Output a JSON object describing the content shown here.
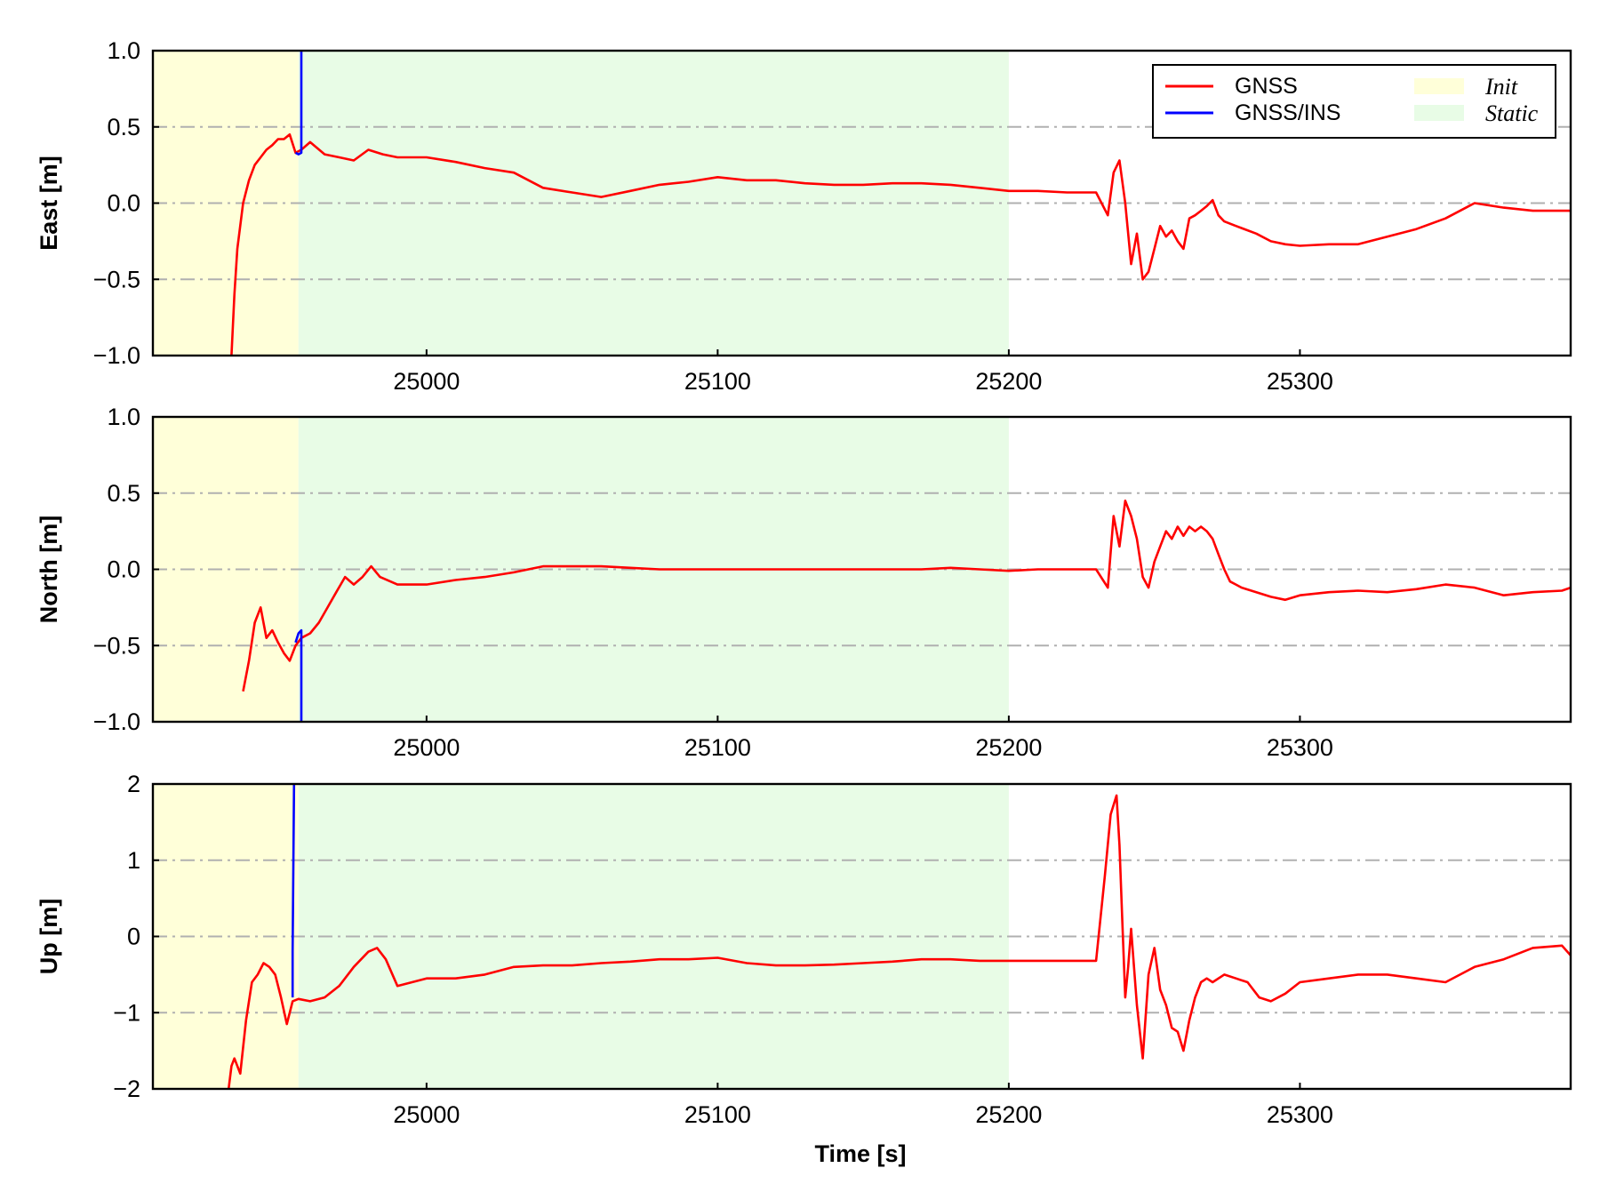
{
  "colors": {
    "gnss": "#ff0000",
    "gnss_ins": "#0000ff",
    "init_band": "#ffffd9",
    "static_band": "#e8fce6",
    "grid": "#b0b0b0"
  },
  "chart_data": [
    {
      "type": "line",
      "ylabel": "East [m]",
      "xlabel": "",
      "xlim": [
        24906,
        25393
      ],
      "ylim": [
        -1.0,
        1.0
      ],
      "xticks": [
        "25000",
        "25100",
        "25200",
        "25300"
      ],
      "yticks": [
        "1.0",
        "0.5",
        "0.0",
        "−0.5",
        "−1.0"
      ],
      "grid": "horizontal dash-dot",
      "bands": [
        {
          "name": "Init",
          "x": [
            24906,
            24956
          ]
        },
        {
          "name": "Static",
          "x": [
            24956,
            25200
          ]
        }
      ],
      "series": [
        {
          "name": "GNSS",
          "x": [
            24933,
            24934,
            24935,
            24937,
            24939,
            24941,
            24943,
            24945,
            24947,
            24949,
            24951,
            24953,
            24955,
            24957,
            24960,
            24965,
            24970,
            24975,
            24980,
            24985,
            24990,
            25000,
            25010,
            25020,
            25030,
            25040,
            25050,
            25060,
            25070,
            25080,
            25090,
            25100,
            25110,
            25120,
            25130,
            25140,
            25150,
            25160,
            25170,
            25180,
            25190,
            25200,
            25210,
            25220,
            25230,
            25234,
            25236,
            25238,
            25240,
            25242,
            25244,
            25246,
            25248,
            25250,
            25252,
            25254,
            25256,
            25258,
            25260,
            25262,
            25264,
            25266,
            25268,
            25270,
            25272,
            25274,
            25278,
            25285,
            25290,
            25295,
            25300,
            25310,
            25320,
            25330,
            25340,
            25350,
            25360,
            25370,
            25380,
            25390,
            25393
          ],
          "y": [
            -1.0,
            -0.6,
            -0.3,
            0.0,
            0.15,
            0.25,
            0.3,
            0.35,
            0.38,
            0.42,
            0.42,
            0.45,
            0.33,
            0.35,
            0.4,
            0.32,
            0.3,
            0.28,
            0.35,
            0.32,
            0.3,
            0.3,
            0.27,
            0.23,
            0.2,
            0.1,
            0.07,
            0.04,
            0.08,
            0.12,
            0.14,
            0.17,
            0.15,
            0.15,
            0.13,
            0.12,
            0.12,
            0.13,
            0.13,
            0.12,
            0.1,
            0.08,
            0.08,
            0.07,
            0.07,
            -0.08,
            0.2,
            0.28,
            0.0,
            -0.4,
            -0.2,
            -0.5,
            -0.45,
            -0.3,
            -0.15,
            -0.22,
            -0.18,
            -0.25,
            -0.3,
            -0.1,
            -0.08,
            -0.05,
            -0.02,
            0.02,
            -0.08,
            -0.12,
            -0.15,
            -0.2,
            -0.25,
            -0.27,
            -0.28,
            -0.27,
            -0.27,
            -0.22,
            -0.17,
            -0.1,
            0.0,
            -0.03,
            -0.05,
            -0.05,
            -0.05
          ]
        },
        {
          "name": "GNSS/INS",
          "x": [
            24955,
            24956,
            24957,
            24957
          ],
          "y": [
            0.33,
            0.32,
            0.33,
            1.0
          ]
        }
      ]
    },
    {
      "type": "line",
      "ylabel": "North [m]",
      "xlabel": "",
      "xlim": [
        24906,
        25393
      ],
      "ylim": [
        -1.0,
        1.0
      ],
      "xticks": [
        "25000",
        "25100",
        "25200",
        "25300"
      ],
      "yticks": [
        "1.0",
        "0.5",
        "0.0",
        "−0.5",
        "−1.0"
      ],
      "grid": "horizontal dash-dot",
      "bands": [
        {
          "name": "Init",
          "x": [
            24906,
            24956
          ]
        },
        {
          "name": "Static",
          "x": [
            24956,
            25200
          ]
        }
      ],
      "series": [
        {
          "name": "GNSS",
          "x": [
            24937,
            24939,
            24941,
            24943,
            24945,
            24947,
            24949,
            24951,
            24953,
            24955,
            24957,
            24960,
            24963,
            24966,
            24969,
            24972,
            24975,
            24978,
            24981,
            24984,
            24990,
            25000,
            25010,
            25020,
            25030,
            25040,
            25050,
            25060,
            25070,
            25080,
            25090,
            25100,
            25110,
            25120,
            25130,
            25140,
            25150,
            25160,
            25170,
            25180,
            25190,
            25200,
            25210,
            25220,
            25230,
            25234,
            25236,
            25238,
            25240,
            25242,
            25244,
            25246,
            25248,
            25250,
            25252,
            25254,
            25256,
            25258,
            25260,
            25262,
            25264,
            25266,
            25268,
            25270,
            25272,
            25274,
            25276,
            25278,
            25280,
            25285,
            25290,
            25295,
            25300,
            25310,
            25320,
            25330,
            25340,
            25350,
            25360,
            25370,
            25380,
            25390,
            25393
          ],
          "y": [
            -0.8,
            -0.6,
            -0.35,
            -0.25,
            -0.45,
            -0.4,
            -0.48,
            -0.55,
            -0.6,
            -0.5,
            -0.45,
            -0.42,
            -0.35,
            -0.25,
            -0.15,
            -0.05,
            -0.1,
            -0.05,
            0.02,
            -0.05,
            -0.1,
            -0.1,
            -0.07,
            -0.05,
            -0.02,
            0.02,
            0.02,
            0.02,
            0.01,
            0.0,
            0.0,
            0.0,
            0.0,
            0.0,
            0.0,
            0.0,
            0.0,
            0.0,
            0.0,
            0.01,
            0.0,
            -0.01,
            0.0,
            0.0,
            0.0,
            -0.12,
            0.35,
            0.15,
            0.45,
            0.35,
            0.2,
            -0.05,
            -0.12,
            0.05,
            0.15,
            0.25,
            0.2,
            0.28,
            0.22,
            0.28,
            0.25,
            0.28,
            0.25,
            0.2,
            0.1,
            0.0,
            -0.08,
            -0.1,
            -0.12,
            -0.15,
            -0.18,
            -0.2,
            -0.17,
            -0.15,
            -0.14,
            -0.15,
            -0.13,
            -0.1,
            -0.12,
            -0.17,
            -0.15,
            -0.14,
            -0.12
          ]
        },
        {
          "name": "GNSS/INS",
          "x": [
            24955,
            24956,
            24957,
            24957
          ],
          "y": [
            -0.48,
            -0.42,
            -0.4,
            -1.0
          ]
        }
      ]
    },
    {
      "type": "line",
      "ylabel": "Up [m]",
      "xlabel": "Time [s]",
      "xlim": [
        24906,
        25393
      ],
      "ylim": [
        -2,
        2
      ],
      "xticks": [
        "25000",
        "25100",
        "25200",
        "25300"
      ],
      "yticks": [
        "2",
        "1",
        "0",
        "−1",
        "−2"
      ],
      "grid": "horizontal dash-dot",
      "bands": [
        {
          "name": "Init",
          "x": [
            24906,
            24956
          ]
        },
        {
          "name": "Static",
          "x": [
            24956,
            25200
          ]
        }
      ],
      "series": [
        {
          "name": "GNSS",
          "x": [
            24932,
            24933,
            24934,
            24936,
            24938,
            24940,
            24942,
            24944,
            24946,
            24948,
            24950,
            24952,
            24954,
            24956,
            24960,
            24965,
            24970,
            24975,
            24980,
            24983,
            24986,
            24990,
            24995,
            25000,
            25010,
            25020,
            25030,
            25040,
            25050,
            25060,
            25070,
            25080,
            25090,
            25100,
            25110,
            25120,
            25130,
            25140,
            25150,
            25160,
            25170,
            25180,
            25190,
            25200,
            25210,
            25220,
            25230,
            25233,
            25235,
            25237,
            25238,
            25239,
            25240,
            25241,
            25242,
            25244,
            25246,
            25248,
            25250,
            25252,
            25254,
            25256,
            25258,
            25260,
            25262,
            25264,
            25266,
            25268,
            25270,
            25274,
            25278,
            25282,
            25286,
            25290,
            25295,
            25300,
            25310,
            25320,
            25330,
            25340,
            25350,
            25360,
            25370,
            25380,
            25390,
            25393
          ],
          "y": [
            -2.0,
            -1.7,
            -1.6,
            -1.8,
            -1.1,
            -0.6,
            -0.5,
            -0.35,
            -0.4,
            -0.5,
            -0.8,
            -1.15,
            -0.85,
            -0.82,
            -0.85,
            -0.8,
            -0.65,
            -0.4,
            -0.2,
            -0.15,
            -0.3,
            -0.65,
            -0.6,
            -0.55,
            -0.55,
            -0.5,
            -0.4,
            -0.38,
            -0.38,
            -0.35,
            -0.33,
            -0.3,
            -0.3,
            -0.28,
            -0.35,
            -0.38,
            -0.38,
            -0.37,
            -0.35,
            -0.33,
            -0.3,
            -0.3,
            -0.32,
            -0.32,
            -0.32,
            -0.32,
            -0.32,
            0.8,
            1.6,
            1.85,
            1.2,
            0.2,
            -0.8,
            -0.4,
            0.1,
            -0.9,
            -1.6,
            -0.5,
            -0.15,
            -0.7,
            -0.9,
            -1.2,
            -1.25,
            -1.5,
            -1.1,
            -0.8,
            -0.6,
            -0.55,
            -0.6,
            -0.5,
            -0.55,
            -0.6,
            -0.8,
            -0.85,
            -0.75,
            -0.6,
            -0.55,
            -0.5,
            -0.5,
            -0.55,
            -0.6,
            -0.4,
            -0.3,
            -0.15,
            -0.12,
            -0.25
          ]
        },
        {
          "name": "GNSS/INS",
          "x": [
            24954,
            24954,
            24954.5
          ],
          "y": [
            -0.8,
            -0.2,
            2.0
          ]
        }
      ]
    }
  ],
  "legend": {
    "items": [
      {
        "label": "GNSS",
        "kind": "line",
        "color": "#ff0000"
      },
      {
        "label": "GNSS/INS",
        "kind": "line",
        "color": "#0000ff"
      },
      {
        "label": "Init",
        "kind": "patch",
        "color": "#ffffd9"
      },
      {
        "label": "Static",
        "kind": "patch",
        "color": "#e8fce6"
      }
    ]
  }
}
